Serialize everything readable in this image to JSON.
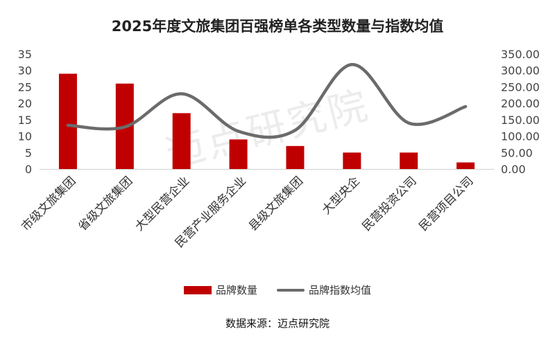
{
  "title": "2025年度文旅集团百强榜单各类型数量与指数均值",
  "source": "数据来源：迈点研究院",
  "watermark": "迈点研究院",
  "colors": {
    "bar": "#c00000",
    "line": "#6b6b6b",
    "axis_text": "#444444"
  },
  "chart_data": {
    "type": "bar",
    "title": "2025年度文旅集团百强榜单各类型数量与指数均值",
    "categories": [
      "市级文旅集团",
      "省级文旅集团",
      "大型民营企业",
      "民营产业服务企业",
      "县级文旅集团",
      "大型央企",
      "民营投资公司",
      "民营项目公司"
    ],
    "series": [
      {
        "name": "品牌数量",
        "type": "bar",
        "axis": "left",
        "values": [
          29,
          26,
          17,
          9,
          7,
          5,
          5,
          2
        ]
      },
      {
        "name": "品牌指数均值",
        "type": "line",
        "axis": "right",
        "smooth": true,
        "values": [
          133,
          128,
          229,
          115,
          118,
          318,
          140,
          190
        ]
      }
    ],
    "y_left": {
      "min": 0,
      "max": 35,
      "step": 5,
      "ticks": [
        "0",
        "5",
        "10",
        "15",
        "20",
        "25",
        "30",
        "35"
      ]
    },
    "y_right": {
      "min": 0,
      "max": 350,
      "step": 50,
      "ticks": [
        "0.00",
        "50.00",
        "100.00",
        "150.00",
        "200.00",
        "250.00",
        "300.00",
        "350.00"
      ]
    },
    "grid": false,
    "legend_position": "bottom"
  }
}
